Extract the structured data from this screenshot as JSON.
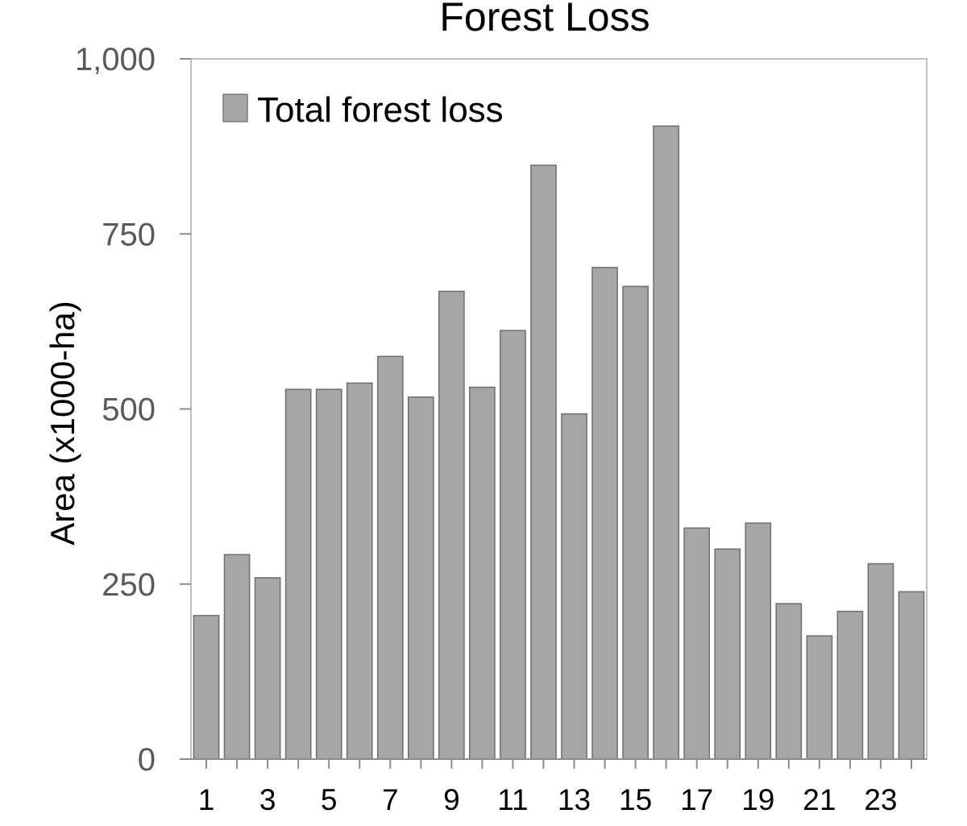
{
  "chart_data": {
    "type": "bar",
    "title": "Forest Loss",
    "ylabel": "Area (x1000-ha)",
    "xlabel": "",
    "categories": [
      "1",
      "2",
      "3",
      "4",
      "5",
      "6",
      "7",
      "8",
      "9",
      "10",
      "11",
      "12",
      "13",
      "14",
      "15",
      "16",
      "17",
      "18",
      "19",
      "20",
      "21",
      "22",
      "23",
      "24"
    ],
    "x_tick_labels": [
      "1",
      "3",
      "5",
      "7",
      "9",
      "11",
      "13",
      "15",
      "17",
      "19",
      "21",
      "23"
    ],
    "y_tick_labels": [
      "0",
      "250",
      "500",
      "750",
      "1,000"
    ],
    "y_ticks": [
      0,
      250,
      500,
      750,
      1000
    ],
    "ylim": [
      0,
      1000
    ],
    "series": [
      {
        "name": "Total forest loss",
        "color": "#a6a6a6",
        "values": [
          205,
          292,
          259,
          528,
          528,
          537,
          575,
          517,
          668,
          531,
          612,
          848,
          493,
          702,
          675,
          904,
          330,
          300,
          337,
          222,
          176,
          211,
          279,
          239
        ]
      }
    ],
    "legend": {
      "placement": "top-left",
      "label": "Total forest loss"
    },
    "grid": false
  }
}
